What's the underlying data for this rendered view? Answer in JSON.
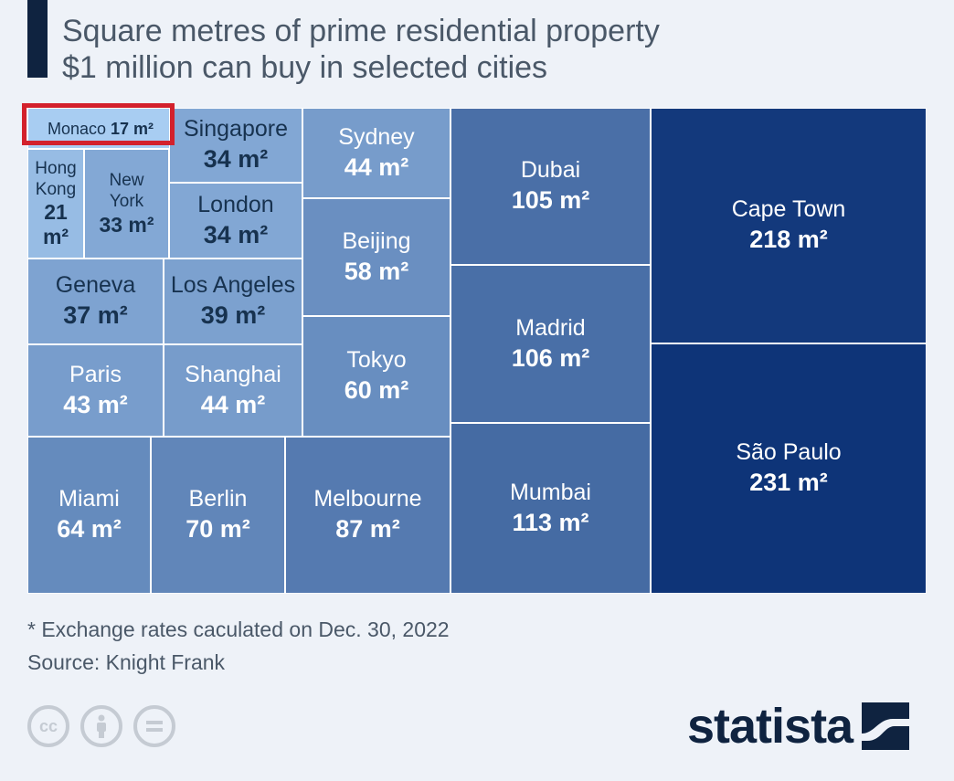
{
  "title": {
    "line1": "Square metres of prime residential property",
    "line2": "$1 million can buy in selected cities"
  },
  "footnote": "* Exchange rates caculated on Dec. 30, 2022",
  "source": "Source: Knight Frank",
  "brand": {
    "logo_text": "statista",
    "logo_color": "#0f2340"
  },
  "license_icons": [
    "cc-icon",
    "attribution-icon",
    "no-derivatives-icon"
  ],
  "highlight_color": "#d3212c",
  "chart_data": {
    "type": "treemap",
    "unit": "m²",
    "items": [
      {
        "name": "Monaco",
        "value": 17,
        "label": "17 m²"
      },
      {
        "name": "Hong Kong",
        "value": 21,
        "label": "21 m²"
      },
      {
        "name": "New York",
        "value": 33,
        "label": "33 m²"
      },
      {
        "name": "Singapore",
        "value": 34,
        "label": "34 m²"
      },
      {
        "name": "London",
        "value": 34,
        "label": "34 m²"
      },
      {
        "name": "Geneva",
        "value": 37,
        "label": "37 m²"
      },
      {
        "name": "Los Angeles",
        "value": 39,
        "label": "39 m²"
      },
      {
        "name": "Paris",
        "value": 43,
        "label": "43 m²"
      },
      {
        "name": "Shanghai",
        "value": 44,
        "label": "44 m²"
      },
      {
        "name": "Sydney",
        "value": 44,
        "label": "44 m²"
      },
      {
        "name": "Beijing",
        "value": 58,
        "label": "58 m²"
      },
      {
        "name": "Tokyo",
        "value": 60,
        "label": "60 m²"
      },
      {
        "name": "Miami",
        "value": 64,
        "label": "64 m²"
      },
      {
        "name": "Berlin",
        "value": 70,
        "label": "70 m²"
      },
      {
        "name": "Melbourne",
        "value": 87,
        "label": "87 m²"
      },
      {
        "name": "Dubai",
        "value": 105,
        "label": "105 m²"
      },
      {
        "name": "Madrid",
        "value": 106,
        "label": "106 m²"
      },
      {
        "name": "Mumbai",
        "value": 113,
        "label": "113 m²"
      },
      {
        "name": "Cape Town",
        "value": 218,
        "label": "218 m²"
      },
      {
        "name": "São Paulo",
        "value": 231,
        "label": "231 m²"
      }
    ]
  }
}
